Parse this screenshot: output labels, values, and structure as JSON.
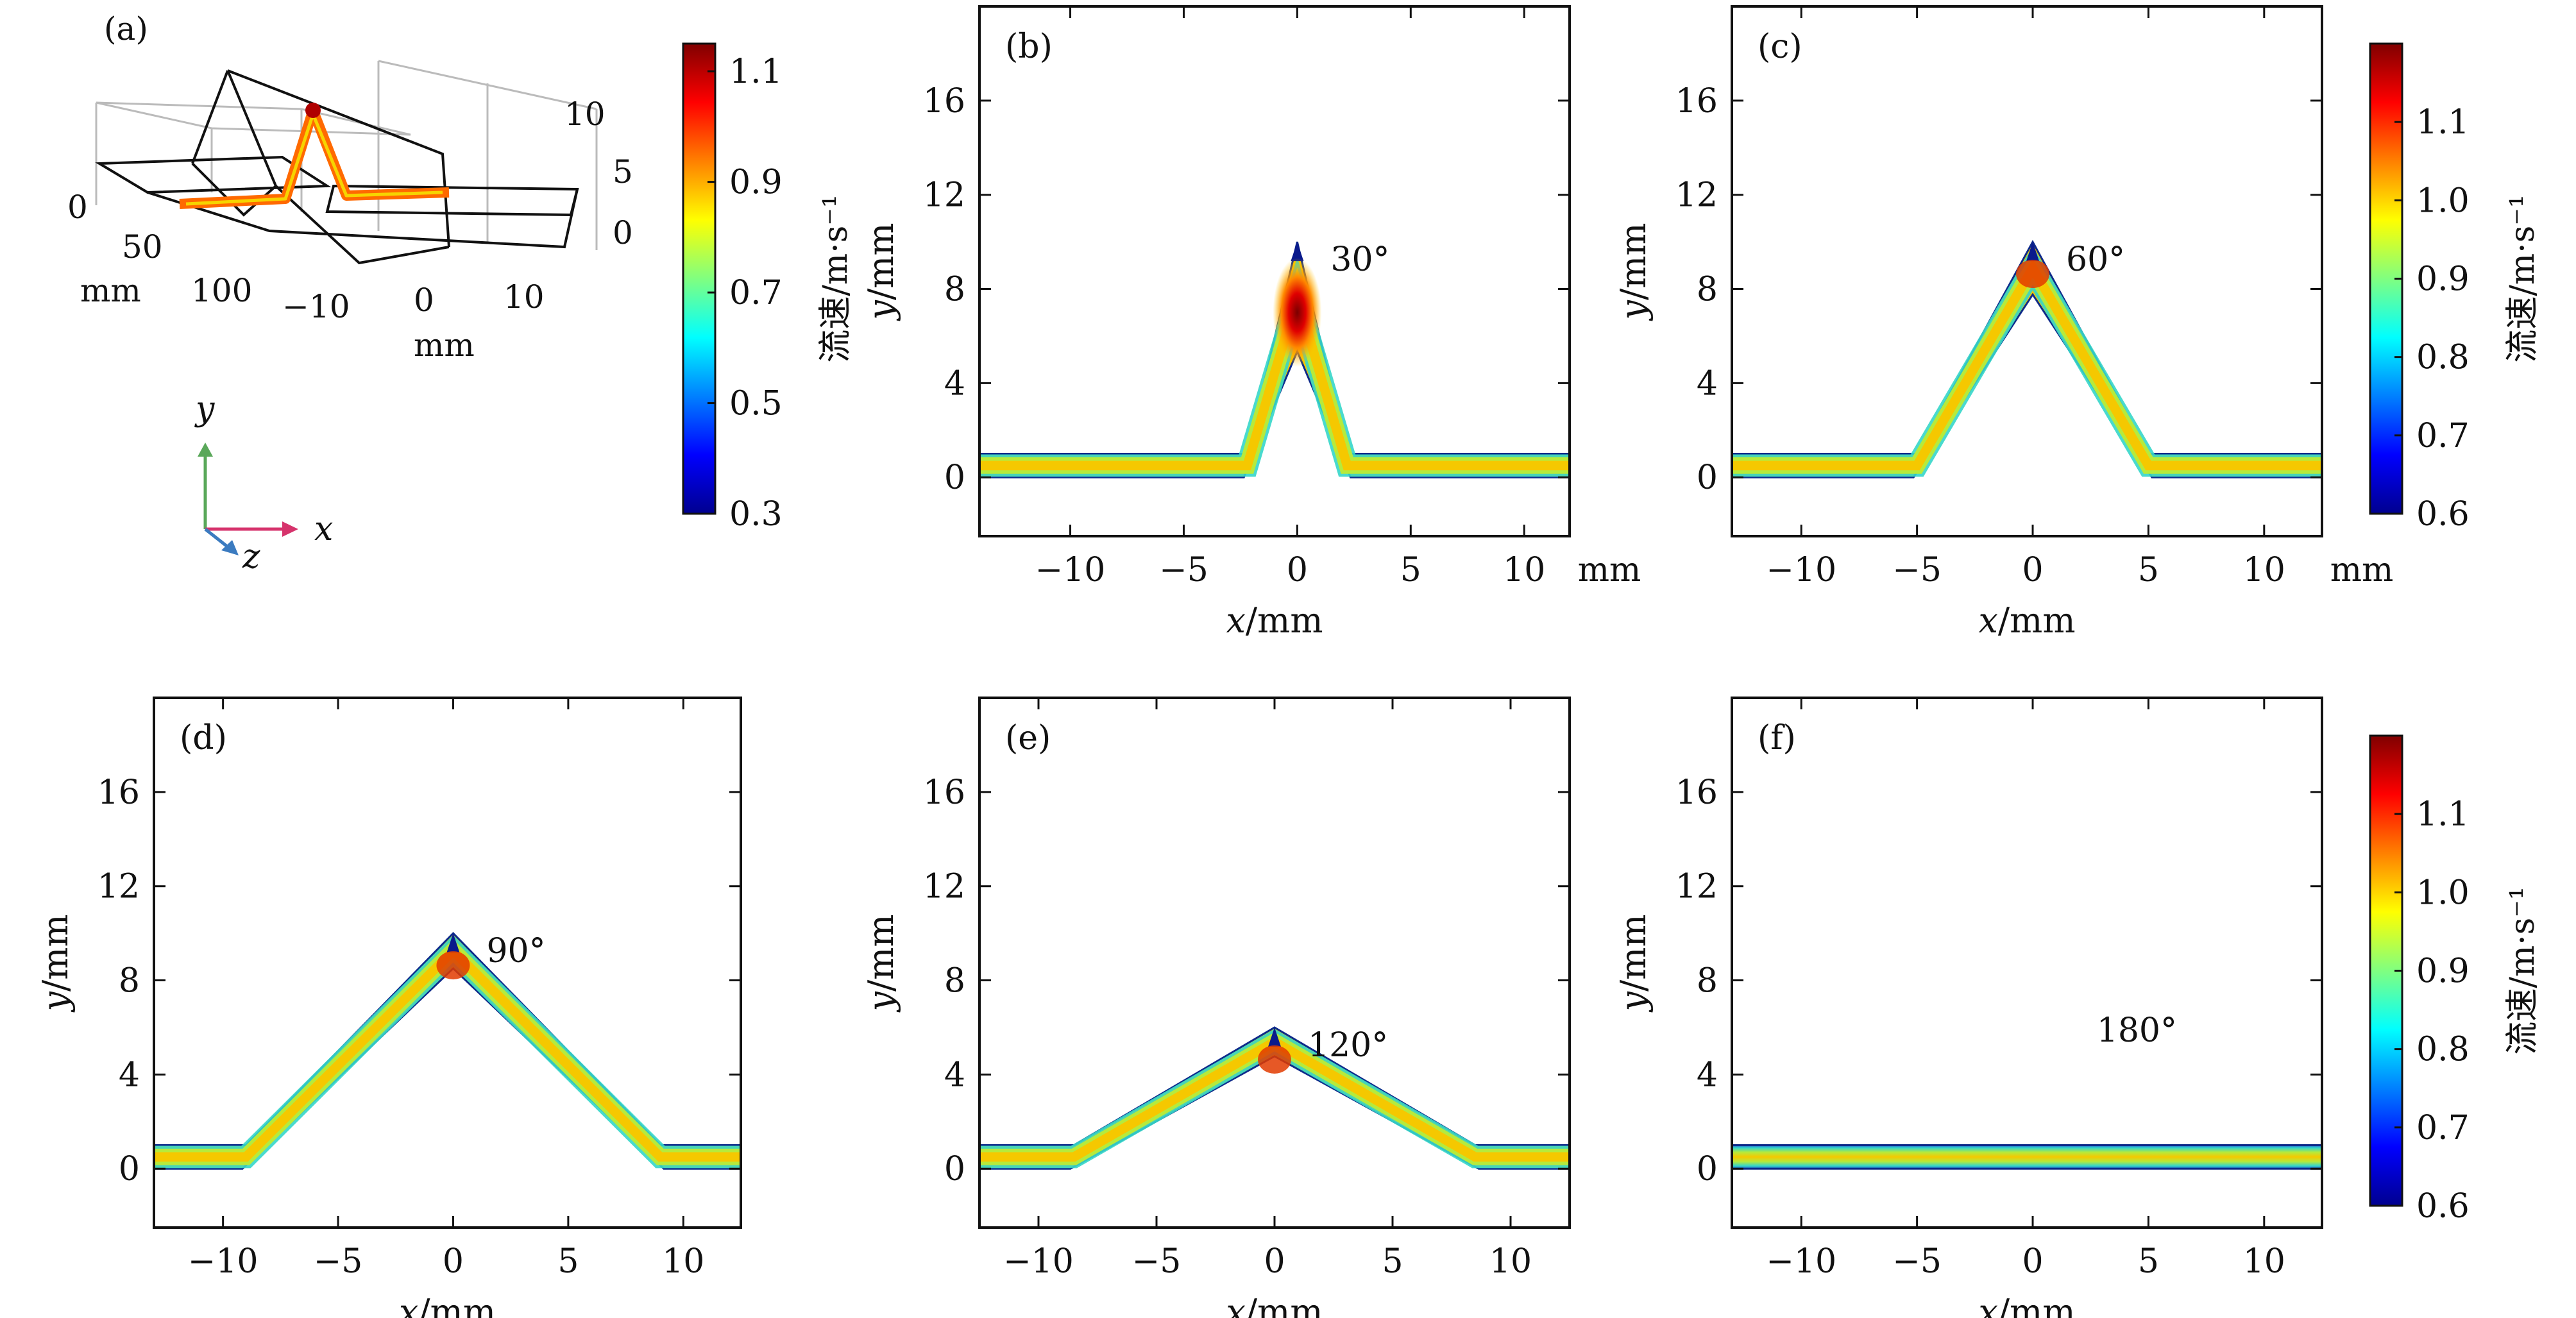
{
  "figure": {
    "panel_labels": [
      "(a)",
      "(b)",
      "(c)",
      "(d)",
      "(e)",
      "(f)"
    ],
    "axis_title_x": "x/mm",
    "axis_title_y": "y/mm",
    "unit_mm": "mm",
    "colorbar_title": "流速/m·s⁻¹",
    "triad_labels": {
      "y": "y",
      "x": "x",
      "z": "z"
    },
    "panel_a": {
      "z_ticks": [
        "10",
        "5",
        "0"
      ],
      "depth_ticks": [
        "0",
        "50",
        "100"
      ],
      "width_ticks": [
        "−10",
        "0",
        "10"
      ],
      "depth_unit": "mm",
      "width_unit": "mm"
    }
  },
  "colors": {
    "jet": [
      "#00008f",
      "#0000ff",
      "#0080ff",
      "#00ffff",
      "#80ff80",
      "#ffff00",
      "#ff8000",
      "#ff0000",
      "#800000"
    ],
    "triad_y": "#5aa85a",
    "triad_x": "#d6336c",
    "triad_z": "#3b7bc0",
    "frame": "#111111"
  },
  "chart_data": [
    {
      "panel": "(a)",
      "type": "heatmap",
      "colorbar": {
        "min": 0.3,
        "max": 1.15,
        "ticks": [
          "0.3",
          "0.5",
          "0.7",
          "0.9",
          "1.1"
        ]
      }
    },
    {
      "panel": "(b)",
      "type": "heatmap",
      "bend_angle_label": "30°",
      "peak_y": 10,
      "half_width_x": 2.2,
      "channel_width": 1,
      "xlim": [
        -14,
        12
      ],
      "ylim": [
        -2.5,
        20
      ],
      "xticks": [
        "−10",
        "−5",
        "0",
        "5",
        "10"
      ],
      "yticks": [
        "0",
        "4",
        "8",
        "12",
        "16"
      ],
      "peak_velocity": 1.15,
      "edge_velocity": 0.3
    },
    {
      "panel": "(c)",
      "type": "heatmap",
      "bend_angle_label": "60°",
      "peak_y": 10,
      "half_width_x": 5,
      "channel_width": 1,
      "xlim": [
        -13,
        12.5
      ],
      "ylim": [
        -2.5,
        20
      ],
      "xticks": [
        "−10",
        "−5",
        "0",
        "5",
        "10"
      ],
      "yticks": [
        "0",
        "4",
        "8",
        "12",
        "16"
      ],
      "colorbar": {
        "min": 0.6,
        "max": 1.2,
        "ticks": [
          "0.6",
          "0.7",
          "0.8",
          "0.9",
          "1.0",
          "1.1"
        ]
      }
    },
    {
      "panel": "(d)",
      "type": "heatmap",
      "bend_angle_label": "90°",
      "peak_y": 10,
      "half_width_x": 9,
      "channel_width": 1,
      "xlim": [
        -13,
        12.5
      ],
      "ylim": [
        -2.5,
        20
      ],
      "xticks": [
        "−10",
        "−5",
        "0",
        "5",
        "10"
      ],
      "yticks": [
        "0",
        "4",
        "8",
        "12",
        "16"
      ]
    },
    {
      "panel": "(e)",
      "type": "heatmap",
      "bend_angle_label": "120°",
      "peak_y": 6,
      "half_width_x": 8.5,
      "channel_width": 1,
      "xlim": [
        -12.5,
        12.5
      ],
      "ylim": [
        -2.5,
        20
      ],
      "xticks": [
        "−10",
        "−5",
        "0",
        "5",
        "10"
      ],
      "yticks": [
        "0",
        "4",
        "8",
        "12",
        "16"
      ]
    },
    {
      "panel": "(f)",
      "type": "heatmap",
      "bend_angle_label": "180°",
      "peak_y": 0,
      "half_width_x": 0,
      "channel_width": 1,
      "xlim": [
        -13,
        12.5
      ],
      "ylim": [
        -2.5,
        20
      ],
      "xticks": [
        "−10",
        "−5",
        "0",
        "5",
        "10"
      ],
      "yticks": [
        "0",
        "4",
        "8",
        "12",
        "16"
      ],
      "colorbar": {
        "min": 0.6,
        "max": 1.2,
        "ticks": [
          "0.6",
          "0.7",
          "0.8",
          "0.9",
          "1.0",
          "1.1"
        ]
      }
    }
  ]
}
